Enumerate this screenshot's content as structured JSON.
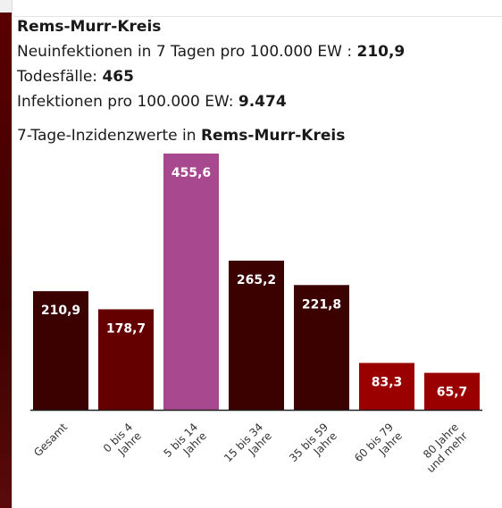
{
  "region": {
    "title": "Rems-Murr-Kreis",
    "incidence_label": "Neuinfektionen in 7 Tagen pro 100.000 EW :",
    "incidence_value": "210,9",
    "deaths_label": "Todesfälle:",
    "deaths_value": "465",
    "infections_label": "Infektionen pro 100.000 EW:",
    "infections_value": "9.474"
  },
  "chart_data": {
    "type": "bar",
    "title_prefix": "7-Tage-Inzidenzwerte in",
    "title_region": "Rems-Murr-Kreis",
    "categories": [
      [
        "Gesamt"
      ],
      [
        "0 bis 4",
        "Jahre"
      ],
      [
        "5 bis 14",
        "Jahre"
      ],
      [
        "15 bis 34",
        "Jahre"
      ],
      [
        "35 bis 59",
        "Jahre"
      ],
      [
        "60 bis 79",
        "Jahre"
      ],
      [
        "80 Jahre",
        "und mehr"
      ]
    ],
    "values": [
      210.9,
      178.7,
      455.6,
      265.2,
      221.8,
      83.3,
      65.7
    ],
    "value_labels": [
      "210,9",
      "178,7",
      "455,6",
      "265,2",
      "221,8",
      "83,3",
      "65,7"
    ],
    "colors": [
      "#3b0000",
      "#650000",
      "#a8488f",
      "#3b0000",
      "#3b0000",
      "#9a0000",
      "#9a0000"
    ],
    "ylim": [
      0,
      455.6
    ],
    "grid": false
  }
}
